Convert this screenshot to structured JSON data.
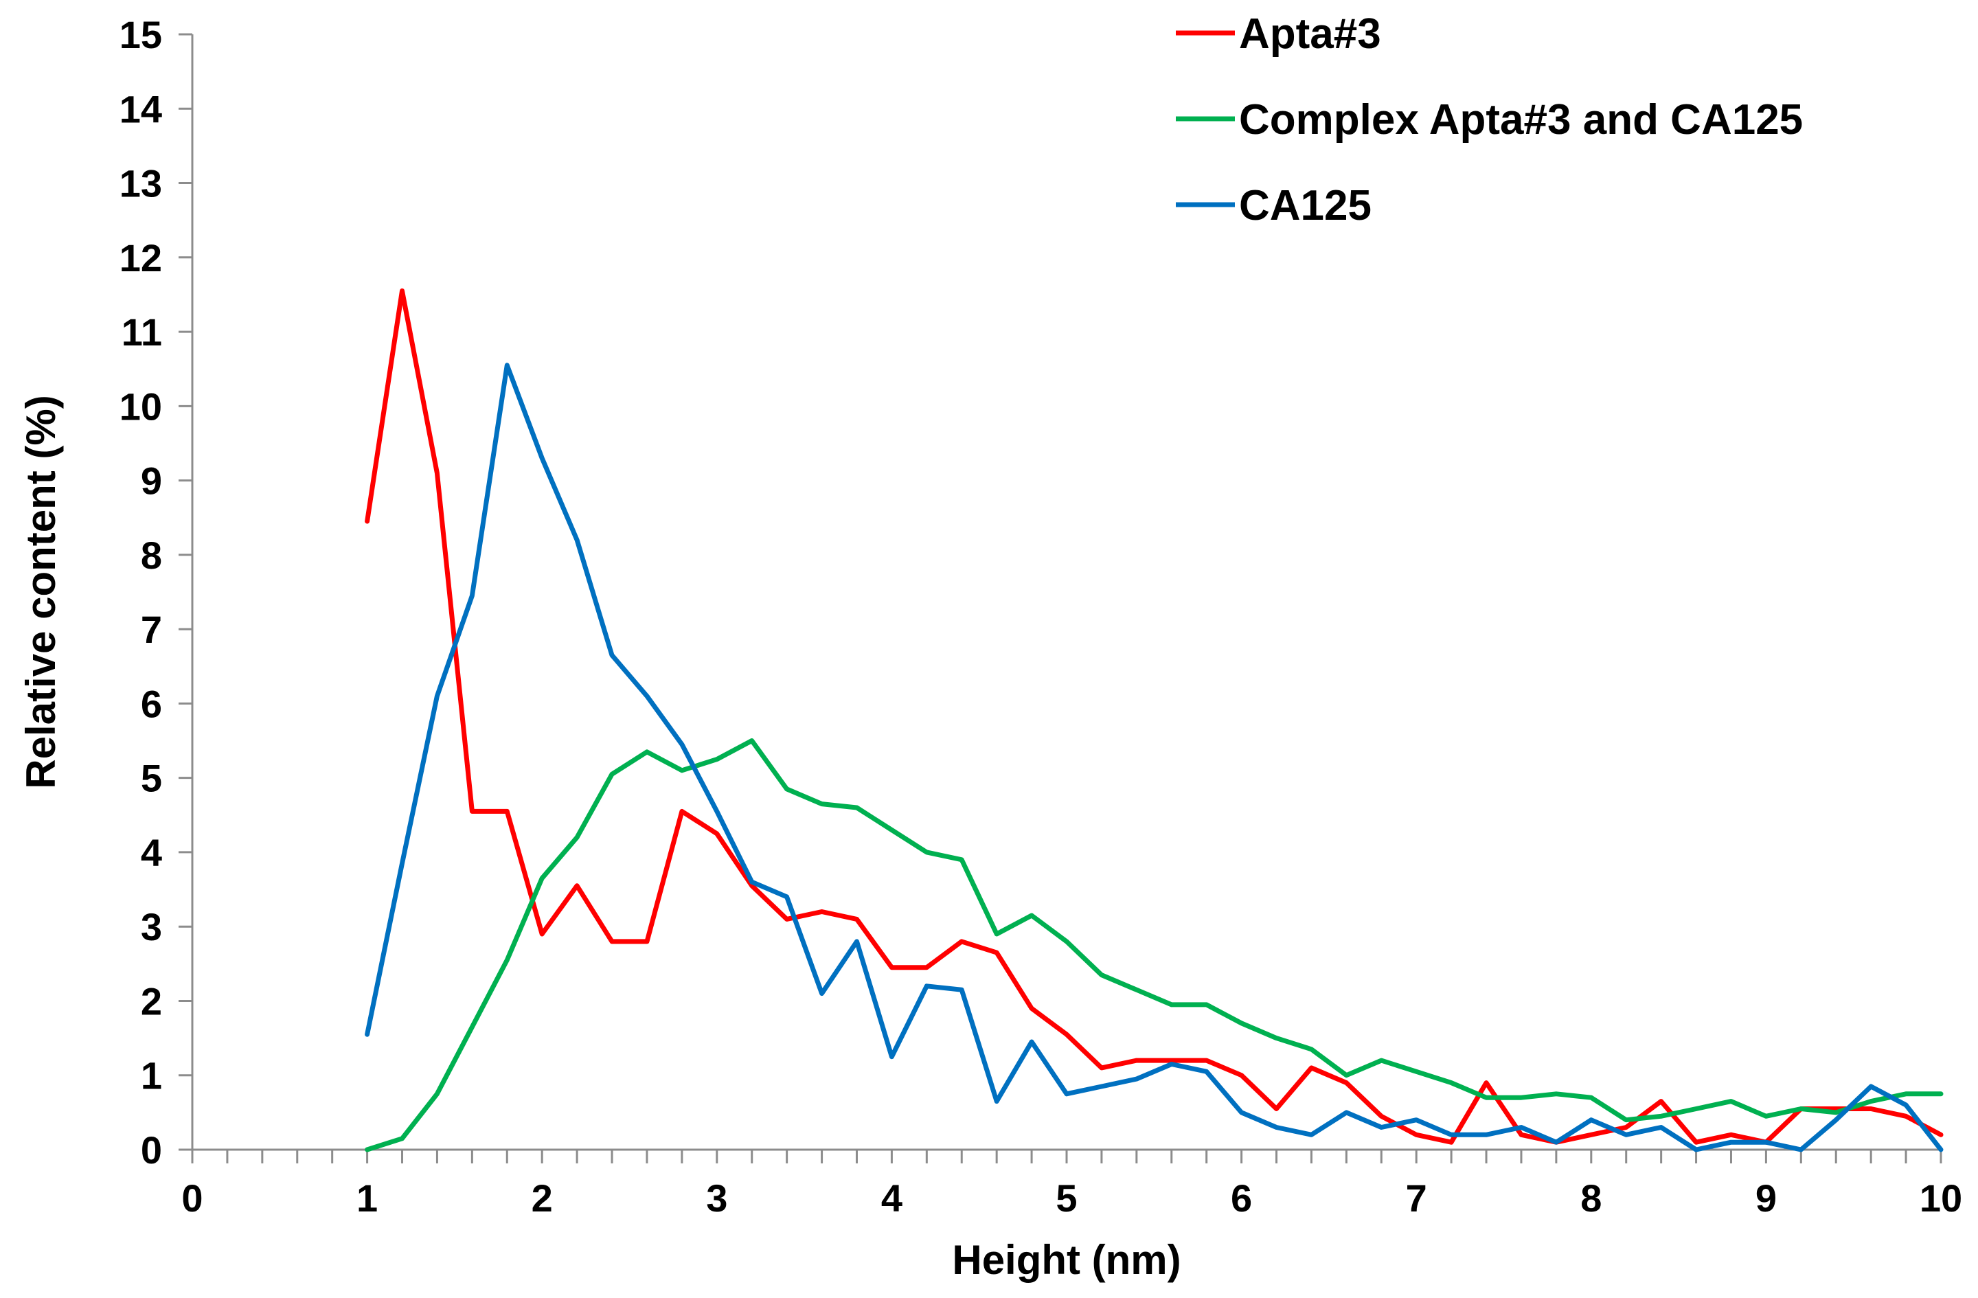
{
  "chart_data": {
    "type": "line",
    "title": "",
    "xlabel": "Height (nm)",
    "ylabel": "Relative content (%)",
    "xlim": [
      0,
      10
    ],
    "ylim": [
      0,
      15
    ],
    "x_ticks": [
      "0",
      "1",
      "2",
      "3",
      "4",
      "5",
      "6",
      "7",
      "8",
      "9",
      "10"
    ],
    "y_ticks": [
      "0",
      "1",
      "2",
      "3",
      "4",
      "5",
      "6",
      "7",
      "8",
      "9",
      "10",
      "11",
      "12",
      "13",
      "14",
      "15"
    ],
    "x_minor_step": 0.2,
    "grid": false,
    "legend_position": "top-right",
    "x": [
      1.0,
      1.2,
      1.4,
      1.6,
      1.8,
      2.0,
      2.2,
      2.4,
      2.6,
      2.8,
      3.0,
      3.2,
      3.4,
      3.6,
      3.8,
      4.0,
      4.2,
      4.4,
      4.6,
      4.8,
      5.0,
      5.2,
      5.4,
      5.6,
      5.8,
      6.0,
      6.2,
      6.4,
      6.6,
      6.8,
      7.0,
      7.2,
      7.4,
      7.6,
      7.8,
      8.0,
      8.2,
      8.4,
      8.6,
      8.8,
      9.0,
      9.2,
      9.4,
      9.6,
      9.8,
      10.0
    ],
    "series": [
      {
        "name": "Apta#3",
        "color": "#ff0000",
        "values": [
          8.45,
          11.55,
          9.1,
          4.55,
          4.55,
          2.9,
          3.55,
          2.8,
          2.8,
          4.55,
          4.25,
          3.55,
          3.1,
          3.2,
          3.1,
          2.45,
          2.45,
          2.8,
          2.65,
          1.9,
          1.55,
          1.1,
          1.2,
          1.2,
          1.2,
          1.0,
          0.55,
          1.1,
          0.9,
          0.45,
          0.2,
          0.1,
          0.9,
          0.2,
          0.1,
          0.2,
          0.3,
          0.65,
          0.1,
          0.2,
          0.1,
          0.55,
          0.55,
          0.55,
          0.45,
          0.2
        ]
      },
      {
        "name": "Complex Apta#3 and CA125",
        "color": "#00b050",
        "values": [
          0.0,
          0.15,
          0.75,
          1.65,
          2.55,
          3.65,
          4.2,
          5.05,
          5.35,
          5.1,
          5.25,
          5.5,
          4.85,
          4.65,
          4.6,
          4.3,
          4.0,
          3.9,
          2.9,
          3.15,
          2.8,
          2.35,
          2.15,
          1.95,
          1.95,
          1.7,
          1.5,
          1.35,
          1.0,
          1.2,
          1.05,
          0.9,
          0.7,
          0.7,
          0.75,
          0.7,
          0.4,
          0.45,
          0.55,
          0.65,
          0.45,
          0.55,
          0.5,
          0.65,
          0.75,
          0.75
        ]
      },
      {
        "name": "CA125",
        "color": "#0070c0",
        "values": [
          1.55,
          3.85,
          6.1,
          7.45,
          10.55,
          9.3,
          8.2,
          6.65,
          6.1,
          5.45,
          4.55,
          3.6,
          3.4,
          2.1,
          2.8,
          1.25,
          2.2,
          2.15,
          0.65,
          1.45,
          0.75,
          0.85,
          0.95,
          1.15,
          1.05,
          0.5,
          0.3,
          0.2,
          0.5,
          0.3,
          0.4,
          0.2,
          0.2,
          0.3,
          0.1,
          0.4,
          0.2,
          0.3,
          0.0,
          0.1,
          0.1,
          0.0,
          0.4,
          0.85,
          0.6,
          0.0
        ]
      }
    ]
  }
}
